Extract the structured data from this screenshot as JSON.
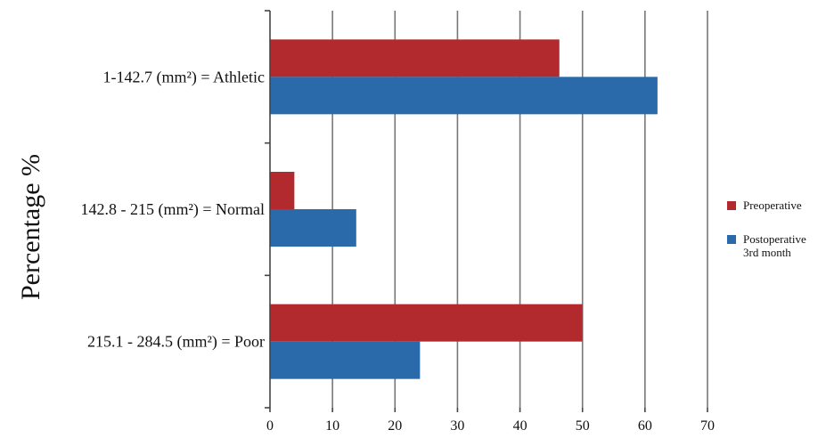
{
  "chart_data": {
    "type": "bar",
    "orientation": "horizontal",
    "categories": [
      "1-142.7 (mm²) =  Athletic",
      "142.8 - 215 (mm²) =  Normal",
      "215.1 - 284.5 (mm²) = Poor"
    ],
    "series": [
      {
        "name": "Preoperative",
        "values": [
          46.3,
          3.9,
          50
        ],
        "color": "#b22a2e"
      },
      {
        "name": "Postoperative 3rd month",
        "name_lines": [
          "Postoperative",
          "3rd month"
        ],
        "values": [
          62,
          13.8,
          24
        ],
        "color": "#2a6aaa"
      }
    ],
    "xlim": [
      0,
      70
    ],
    "xticks": [
      0,
      10,
      20,
      30,
      40,
      50,
      60,
      70
    ],
    "xlabel": "",
    "ylabel": "Percentage %",
    "grid": true,
    "legend_position": "right"
  }
}
